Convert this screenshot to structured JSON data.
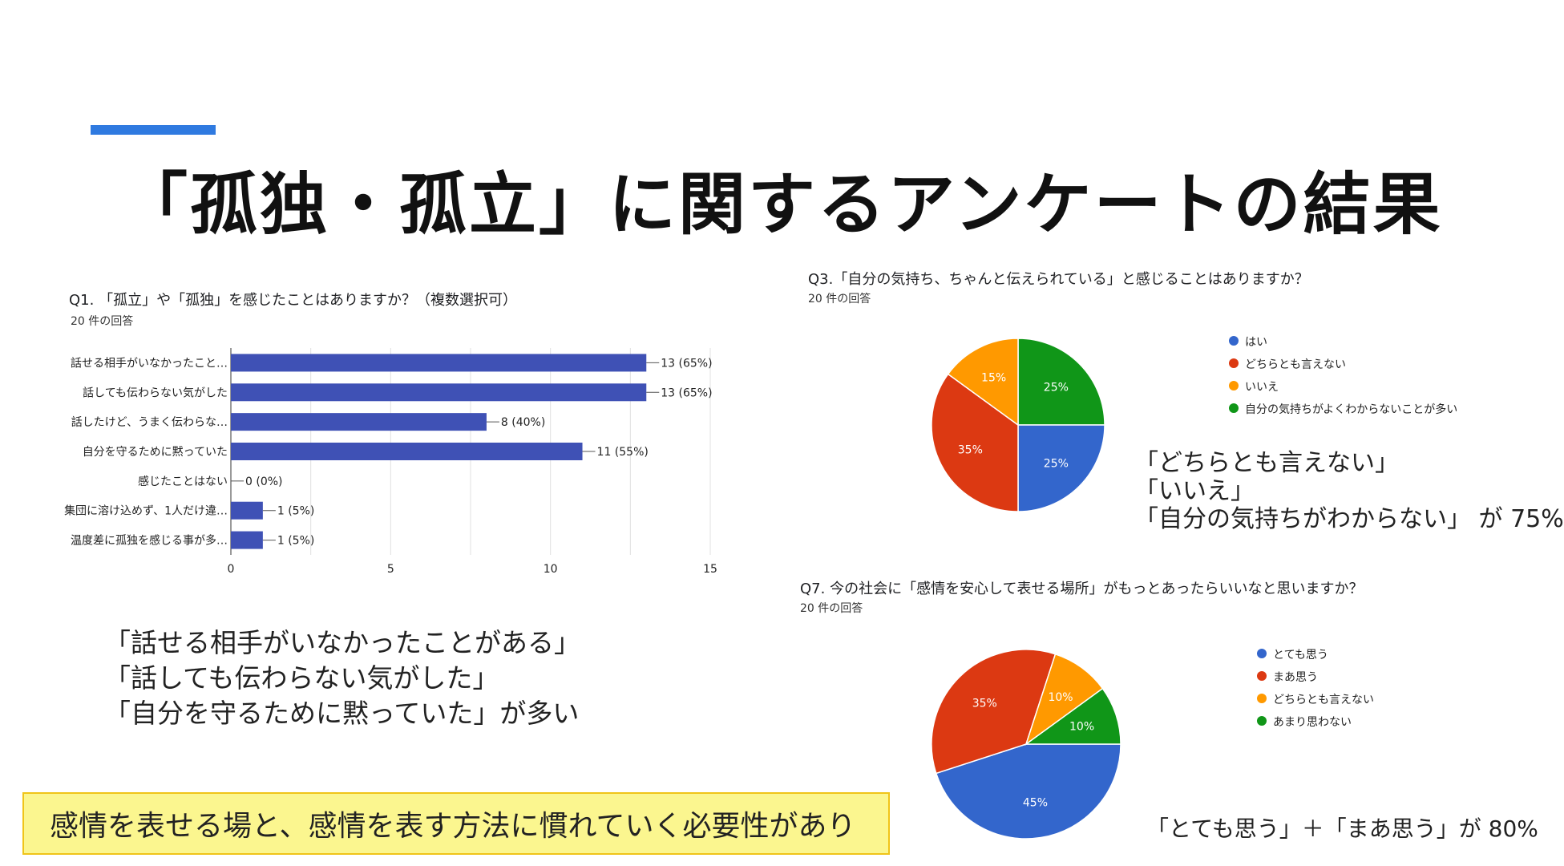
{
  "title": "「孤独・孤立」に関するアンケートの結果",
  "q1": {
    "title": "Q1. 「孤立」や「孤独」を感じたことはありますか？（複数選択可）",
    "count": "20 件の回答"
  },
  "q3": {
    "title": "Q3.「自分の気持ち、ちゃんと伝えられている」と感じることはありますか？",
    "count": "20 件の回答",
    "legend": [
      "はい",
      "どちらとも言えない",
      "いいえ",
      "自分の気持ちがよくわからないことが多い"
    ]
  },
  "q7": {
    "title": "Q7. 今の社会に「感情を安心して表せる場所」がもっとあったらいいなと思いますか？",
    "count": "20 件の回答",
    "legend": [
      "とても思う",
      "まあ思う",
      "どちらとも言えない",
      "あまり思わない"
    ]
  },
  "notes": {
    "q1": [
      "「話せる相手がいなかったことがある」",
      "「話しても伝わらない気がした」",
      "「自分を守るために黙っていた」が多い"
    ],
    "q3": [
      "「どちらとも言えない」",
      "「いいえ」",
      "「自分の気持ちがわからない」 が 75%"
    ],
    "q7": "「とても思う」＋「まあ思う」が 80%"
  },
  "callout": "感情を表せる場と、感情を表す方法に慣れていく必要性があり",
  "colors": {
    "accent": "#2f7ae0",
    "bar": "#3f51b5",
    "blue": "#3366cc",
    "red": "#dc3912",
    "orange": "#ff9900",
    "green": "#109618"
  },
  "chart_data": [
    {
      "type": "bar",
      "orientation": "horizontal",
      "categories": [
        "話せる相手がいなかったこと…",
        "話しても伝わらない気がした",
        "話したけど、うまく伝わらな…",
        "自分を守るために黙っていた",
        "感じたことはない",
        "集団に溶け込めず、1人だけ違…",
        "温度差に孤独を感じる事が多…"
      ],
      "values": [
        13,
        13,
        8,
        11,
        0,
        1,
        1
      ],
      "data_labels": [
        "13 (65%)",
        "13 (65%)",
        "8 (40%)",
        "11 (55%)",
        "0 (0%)",
        "1 (5%)",
        "1 (5%)"
      ],
      "xlim": [
        0,
        15
      ],
      "xticks": [
        "0",
        "5",
        "10",
        "15"
      ],
      "grid": true
    },
    {
      "type": "pie",
      "labels": [
        "はい",
        "どちらとも言えない",
        "いいえ",
        "自分の気持ちがよくわからないことが多い"
      ],
      "values": [
        25,
        35,
        15,
        25
      ],
      "value_labels": [
        "25%",
        "35%",
        "15%",
        "25%"
      ]
    },
    {
      "type": "pie",
      "labels": [
        "とても思う",
        "まあ思う",
        "どちらとも言えない",
        "あまり思わない"
      ],
      "values": [
        45,
        35,
        10,
        10
      ],
      "value_labels": [
        "45%",
        "35%",
        "10%",
        "10%"
      ]
    }
  ]
}
